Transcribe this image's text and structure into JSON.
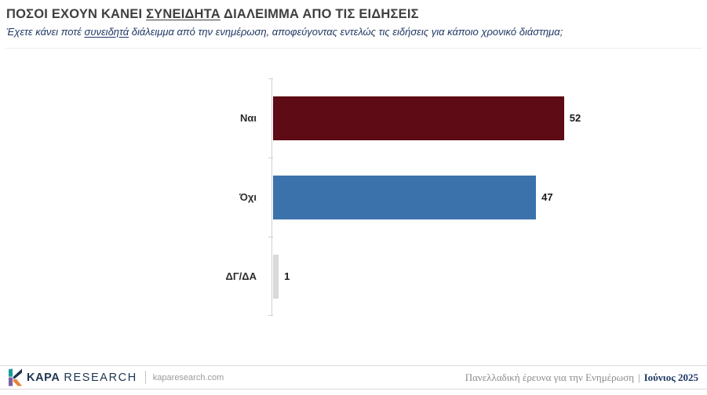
{
  "header": {
    "title_part1": "ΠΟΣΟΙ ΕΧΟΥΝ ΚΑΝΕΙ ",
    "title_underlined": "ΣΥΝΕΙΔΗΤΑ",
    "title_part2": " ΔΙΑΛΕΙΜΜΑ ΑΠΟ ΤΙΣ ΕΙΔΗΣΕΙΣ",
    "subtitle_part1": "Έχετε κάνει ποτέ ",
    "subtitle_underlined": "συνειδητά",
    "subtitle_part2": " διάλειμμα από την ενημέρωση, αποφεύγοντας εντελώς τις ειδήσεις για κάποιο χρονικό διάστημα;"
  },
  "chart_data": {
    "type": "bar",
    "orientation": "horizontal",
    "title": "ΠΟΣΟΙ ΕΧΟΥΝ ΚΑΝΕΙ ΣΥΝΕΙΔΗΤΑ ΔΙΑΛΕΙΜΜΑ ΑΠΟ ΤΙΣ ΕΙΔΗΣΕΙΣ",
    "subtitle": "Έχετε κάνει ποτέ συνειδητά διάλειμμα από την ενημέρωση, αποφεύγοντας εντελώς τις ειδήσεις για κάποιο χρονικό διάστημα;",
    "categories": [
      "Ναι",
      "Όχι",
      "ΔΓ/ΔΑ"
    ],
    "values": [
      52,
      47,
      1
    ],
    "value_labels": [
      "52",
      "47",
      "1"
    ],
    "colors": [
      "#5E0B15",
      "#3C72AB",
      "#D9D9D9"
    ],
    "xlim": [
      0,
      52
    ],
    "grid": false,
    "legend": false,
    "xlabel": "",
    "ylabel": ""
  },
  "footer": {
    "brand_bold": "KAPA",
    "brand_regular": "RESEARCH",
    "website": "kaparesearch.com",
    "survey_label": "Πανελλαδική έρευνα για την Ενημέρωση",
    "separator": "|",
    "survey_date": "Ιούνιος 2025",
    "logo_colors": {
      "teal": "#1B9E9B",
      "navy": "#1E3550",
      "purple": "#7C5FA5",
      "orange": "#E8833A"
    }
  }
}
